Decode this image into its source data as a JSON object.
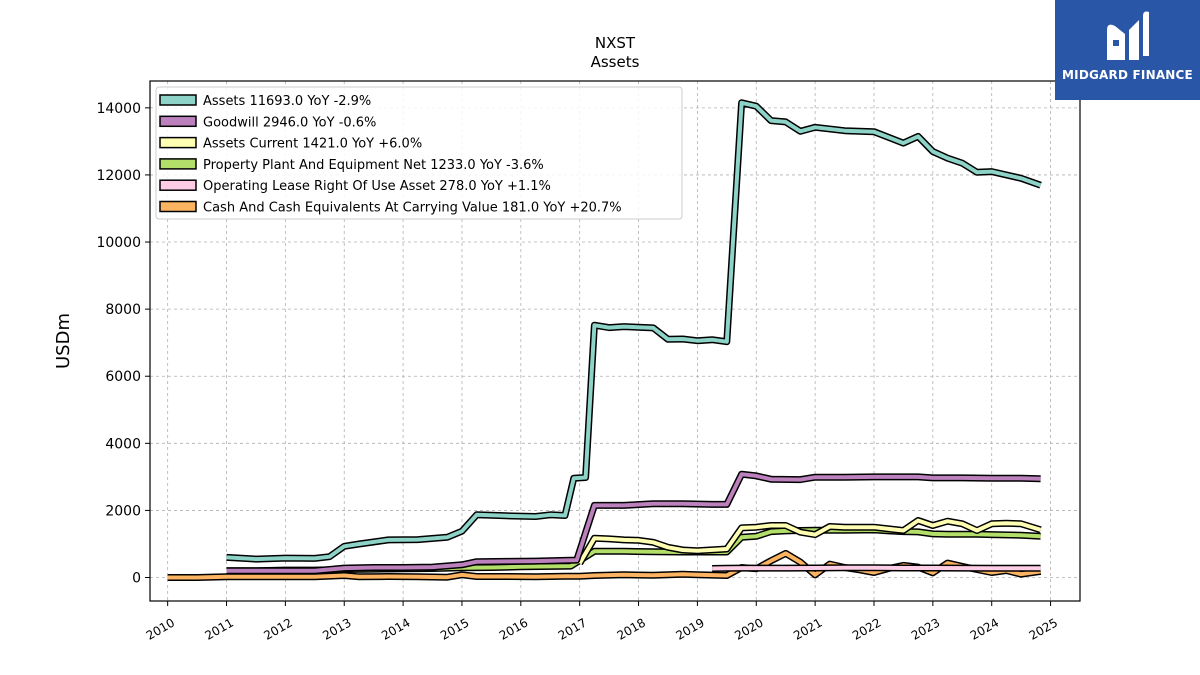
{
  "brand": {
    "name": "MIDGARD FINANCE",
    "color": "#2a56a8",
    "icon": "midgard-logo-icon"
  },
  "chart_data": {
    "type": "line",
    "title": "NXST",
    "subtitle": "Assets",
    "ylabel": "USDm",
    "xlabel": "",
    "xlim": [
      2009.7,
      2025.5
    ],
    "ylim": [
      -700,
      14800
    ],
    "x_ticks": [
      2010,
      2011,
      2012,
      2013,
      2014,
      2015,
      2016,
      2017,
      2018,
      2019,
      2020,
      2021,
      2022,
      2023,
      2024,
      2025
    ],
    "x_tick_labels": [
      "2010",
      "2011",
      "2012",
      "2013",
      "2014",
      "2015",
      "2016",
      "2017",
      "2018",
      "2019",
      "2020",
      "2021",
      "2022",
      "2023",
      "2024",
      "2025"
    ],
    "y_ticks": [
      0,
      2000,
      4000,
      6000,
      8000,
      10000,
      12000,
      14000
    ],
    "y_tick_labels": [
      "0",
      "2000",
      "4000",
      "6000",
      "8000",
      "10000",
      "12000",
      "14000"
    ],
    "grid": true,
    "legend_position": "top-left",
    "series": [
      {
        "name": "Cash And Cash Equivalents At Carrying Value",
        "legend": "Cash And Cash Equivalents At Carrying Value  181.0 YoY +20.7%",
        "color": "#fdb462",
        "points": [
          [
            2010.0,
            0
          ],
          [
            2010.5,
            0
          ],
          [
            2011.0,
            20
          ],
          [
            2011.5,
            20
          ],
          [
            2012.0,
            20
          ],
          [
            2012.5,
            20
          ],
          [
            2013.0,
            60
          ],
          [
            2013.25,
            20
          ],
          [
            2013.75,
            30
          ],
          [
            2014.25,
            20
          ],
          [
            2014.75,
            10
          ],
          [
            2015.0,
            80
          ],
          [
            2015.25,
            30
          ],
          [
            2015.75,
            30
          ],
          [
            2016.25,
            20
          ],
          [
            2016.75,
            40
          ],
          [
            2017.0,
            40
          ],
          [
            2017.25,
            60
          ],
          [
            2017.75,
            80
          ],
          [
            2018.25,
            70
          ],
          [
            2018.75,
            100
          ],
          [
            2019.0,
            80
          ],
          [
            2019.5,
            60
          ],
          [
            2019.75,
            300
          ],
          [
            2020.0,
            260
          ],
          [
            2020.25,
            500
          ],
          [
            2020.5,
            720
          ],
          [
            2020.75,
            460
          ],
          [
            2021.0,
            80
          ],
          [
            2021.25,
            400
          ],
          [
            2021.5,
            300
          ],
          [
            2021.75,
            230
          ],
          [
            2022.0,
            150
          ],
          [
            2022.25,
            270
          ],
          [
            2022.5,
            360
          ],
          [
            2022.75,
            310
          ],
          [
            2023.0,
            140
          ],
          [
            2023.25,
            430
          ],
          [
            2023.5,
            330
          ],
          [
            2023.75,
            240
          ],
          [
            2024.0,
            150
          ],
          [
            2024.25,
            210
          ],
          [
            2024.5,
            100
          ],
          [
            2024.83,
            181
          ]
        ]
      },
      {
        "name": "Operating Lease Right Of Use Asset",
        "legend": "Operating Lease Right Of Use Asset  278.0 YoY +1.1%",
        "color": "#fccde5",
        "points": [
          [
            2019.25,
            270
          ],
          [
            2019.5,
            275
          ],
          [
            2019.75,
            280
          ],
          [
            2020.5,
            280
          ],
          [
            2021.0,
            285
          ],
          [
            2021.5,
            290
          ],
          [
            2022.0,
            290
          ],
          [
            2022.5,
            285
          ],
          [
            2023.0,
            283
          ],
          [
            2023.5,
            280
          ],
          [
            2024.0,
            278
          ],
          [
            2024.5,
            279
          ],
          [
            2024.83,
            278
          ]
        ]
      },
      {
        "name": "Property Plant And Equipment Net",
        "legend": "Property Plant And Equipment Net  1233.0 YoY -3.6%",
        "color": "#b3de69",
        "points": [
          [
            2011.0,
            200
          ],
          [
            2011.5,
            200
          ],
          [
            2012.0,
            220
          ],
          [
            2012.5,
            220
          ],
          [
            2013.0,
            240
          ],
          [
            2013.5,
            250
          ],
          [
            2014.0,
            260
          ],
          [
            2014.5,
            270
          ],
          [
            2015.0,
            290
          ],
          [
            2015.5,
            300
          ],
          [
            2016.0,
            320
          ],
          [
            2016.5,
            330
          ],
          [
            2016.85,
            340
          ],
          [
            2017.25,
            780
          ],
          [
            2017.75,
            780
          ],
          [
            2018.25,
            770
          ],
          [
            2018.75,
            760
          ],
          [
            2019.25,
            760
          ],
          [
            2019.5,
            760
          ],
          [
            2019.75,
            1200
          ],
          [
            2020.0,
            1230
          ],
          [
            2020.25,
            1370
          ],
          [
            2020.5,
            1390
          ],
          [
            2020.75,
            1400
          ],
          [
            2021.0,
            1410
          ],
          [
            2021.5,
            1410
          ],
          [
            2022.0,
            1420
          ],
          [
            2022.25,
            1390
          ],
          [
            2022.5,
            1370
          ],
          [
            2022.75,
            1360
          ],
          [
            2023.0,
            1300
          ],
          [
            2023.25,
            1290
          ],
          [
            2023.75,
            1290
          ],
          [
            2024.0,
            1280
          ],
          [
            2024.5,
            1260
          ],
          [
            2024.83,
            1233
          ]
        ]
      },
      {
        "name": "Assets Current",
        "legend": "Assets Current  1421.0 YoY +6.0%",
        "color": "#ffffb3",
        "points": [
          [
            2017.0,
            420
          ],
          [
            2017.25,
            1170
          ],
          [
            2017.5,
            1150
          ],
          [
            2017.75,
            1120
          ],
          [
            2018.0,
            1110
          ],
          [
            2018.25,
            1050
          ],
          [
            2018.5,
            900
          ],
          [
            2018.75,
            820
          ],
          [
            2019.0,
            800
          ],
          [
            2019.5,
            850
          ],
          [
            2019.75,
            1480
          ],
          [
            2020.0,
            1500
          ],
          [
            2020.25,
            1550
          ],
          [
            2020.5,
            1550
          ],
          [
            2020.75,
            1350
          ],
          [
            2021.0,
            1280
          ],
          [
            2021.25,
            1520
          ],
          [
            2021.5,
            1500
          ],
          [
            2021.75,
            1500
          ],
          [
            2022.0,
            1500
          ],
          [
            2022.25,
            1450
          ],
          [
            2022.5,
            1400
          ],
          [
            2022.75,
            1700
          ],
          [
            2023.0,
            1550
          ],
          [
            2023.25,
            1680
          ],
          [
            2023.5,
            1600
          ],
          [
            2023.75,
            1400
          ],
          [
            2024.0,
            1600
          ],
          [
            2024.25,
            1620
          ],
          [
            2024.5,
            1600
          ],
          [
            2024.83,
            1421
          ]
        ]
      },
      {
        "name": "Goodwill",
        "legend": "Goodwill  2946.0 YoY -0.6%",
        "color": "#bc80bd",
        "points": [
          [
            2011.0,
            200
          ],
          [
            2011.5,
            200
          ],
          [
            2012.0,
            200
          ],
          [
            2012.5,
            200
          ],
          [
            2013.0,
            280
          ],
          [
            2013.5,
            300
          ],
          [
            2014.0,
            300
          ],
          [
            2014.5,
            310
          ],
          [
            2015.0,
            380
          ],
          [
            2015.25,
            470
          ],
          [
            2015.75,
            480
          ],
          [
            2016.25,
            490
          ],
          [
            2016.75,
            510
          ],
          [
            2016.95,
            520
          ],
          [
            2017.25,
            2150
          ],
          [
            2017.75,
            2150
          ],
          [
            2018.25,
            2200
          ],
          [
            2018.75,
            2200
          ],
          [
            2019.25,
            2180
          ],
          [
            2019.5,
            2180
          ],
          [
            2019.75,
            3080
          ],
          [
            2020.0,
            3030
          ],
          [
            2020.25,
            2930
          ],
          [
            2020.75,
            2920
          ],
          [
            2021.0,
            2990
          ],
          [
            2021.5,
            2990
          ],
          [
            2022.0,
            3000
          ],
          [
            2022.5,
            3000
          ],
          [
            2022.75,
            3000
          ],
          [
            2023.0,
            2970
          ],
          [
            2023.5,
            2970
          ],
          [
            2024.0,
            2960
          ],
          [
            2024.5,
            2960
          ],
          [
            2024.83,
            2946
          ]
        ]
      },
      {
        "name": "Assets",
        "legend": "Assets  11693.0 YoY -2.9%",
        "color": "#8dd3c7",
        "points": [
          [
            2011.0,
            600
          ],
          [
            2011.5,
            550
          ],
          [
            2012.0,
            580
          ],
          [
            2012.5,
            570
          ],
          [
            2012.75,
            620
          ],
          [
            2013.0,
            930
          ],
          [
            2013.25,
            1000
          ],
          [
            2013.75,
            1120
          ],
          [
            2014.25,
            1130
          ],
          [
            2014.75,
            1200
          ],
          [
            2015.0,
            1380
          ],
          [
            2015.25,
            1870
          ],
          [
            2015.75,
            1840
          ],
          [
            2016.25,
            1820
          ],
          [
            2016.5,
            1870
          ],
          [
            2016.75,
            1850
          ],
          [
            2016.9,
            2960
          ],
          [
            2017.1,
            2980
          ],
          [
            2017.25,
            7520
          ],
          [
            2017.5,
            7450
          ],
          [
            2017.75,
            7480
          ],
          [
            2018.25,
            7440
          ],
          [
            2018.5,
            7100
          ],
          [
            2018.75,
            7110
          ],
          [
            2019.0,
            7060
          ],
          [
            2019.25,
            7090
          ],
          [
            2019.5,
            7030
          ],
          [
            2019.75,
            14150
          ],
          [
            2020.0,
            14050
          ],
          [
            2020.25,
            13620
          ],
          [
            2020.5,
            13580
          ],
          [
            2020.75,
            13300
          ],
          [
            2021.0,
            13420
          ],
          [
            2021.5,
            13320
          ],
          [
            2022.0,
            13290
          ],
          [
            2022.5,
            12950
          ],
          [
            2022.75,
            13150
          ],
          [
            2023.0,
            12700
          ],
          [
            2023.25,
            12500
          ],
          [
            2023.5,
            12350
          ],
          [
            2023.75,
            12080
          ],
          [
            2024.0,
            12100
          ],
          [
            2024.5,
            11900
          ],
          [
            2024.83,
            11693
          ]
        ]
      }
    ],
    "legend_order": [
      "Assets",
      "Goodwill",
      "Assets Current",
      "Property Plant And Equipment Net",
      "Operating Lease Right Of Use Asset",
      "Cash And Cash Equivalents At Carrying Value"
    ]
  }
}
